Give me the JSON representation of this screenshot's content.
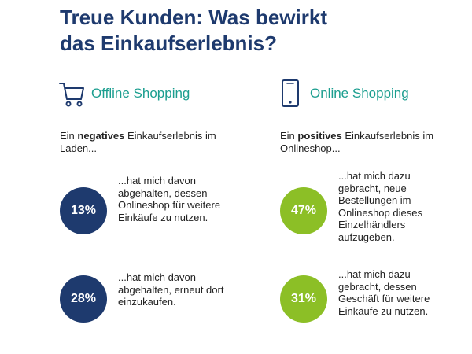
{
  "title": {
    "line1": "Treue Kunden: Was bewirkt",
    "line2": "das Einkaufserlebnis?"
  },
  "colors": {
    "title": "#1e3a6e",
    "section_label": "#1b9e8f",
    "navy_circle": "#1e3a6e",
    "green_circle": "#8cbf26"
  },
  "offline": {
    "icon": "shopping-cart-icon",
    "label": "Offline Shopping",
    "intro_before": "Ein ",
    "intro_bold": "negatives",
    "intro_after": " Einkaufserlebnis im Laden...",
    "stats": [
      {
        "value": "13%",
        "text": "...hat mich davon abgehalten, dessen Onlineshop für weitere Einkäufe zu nutzen."
      },
      {
        "value": "28%",
        "text": "...hat mich davon abgehalten, erneut dort einzukaufen."
      }
    ]
  },
  "online": {
    "icon": "smartphone-icon",
    "label": "Online Shopping",
    "intro_before": "Ein ",
    "intro_bold": "positives",
    "intro_after": " Einkaufserlebnis im Onlineshop...",
    "stats": [
      {
        "value": "47%",
        "text": "...hat mich dazu gebracht, neue Bestellungen im Onlineshop dieses Einzelhändlers aufzugeben."
      },
      {
        "value": "31%",
        "text": "...hat mich dazu gebracht, dessen Geschäft für weitere Einkäufe zu nutzen."
      }
    ]
  }
}
